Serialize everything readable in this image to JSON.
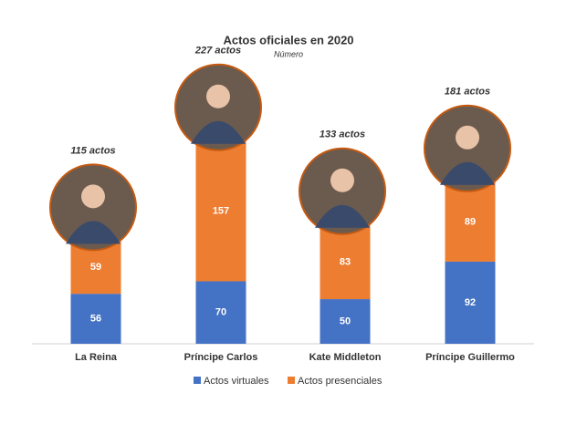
{
  "chart_data": {
    "type": "stacked-bar",
    "title": "Actos oficiales en 2020",
    "subtitle": "Número",
    "categories": [
      "La Reina",
      "Príncipe Carlos",
      "Kate Middleton",
      "Príncipe Guillermo"
    ],
    "series": [
      {
        "name": "Actos virtuales",
        "color": "#4472c4",
        "values": [
          56,
          70,
          50,
          92
        ]
      },
      {
        "name": "Actos presenciales",
        "color": "#ed7d31",
        "values": [
          59,
          157,
          83,
          89
        ]
      }
    ],
    "annotations": [
      "115 actos",
      "227 actos",
      "133 actos",
      "181 actos"
    ],
    "ylim": [
      0,
      380
    ],
    "legend": "bottom"
  }
}
